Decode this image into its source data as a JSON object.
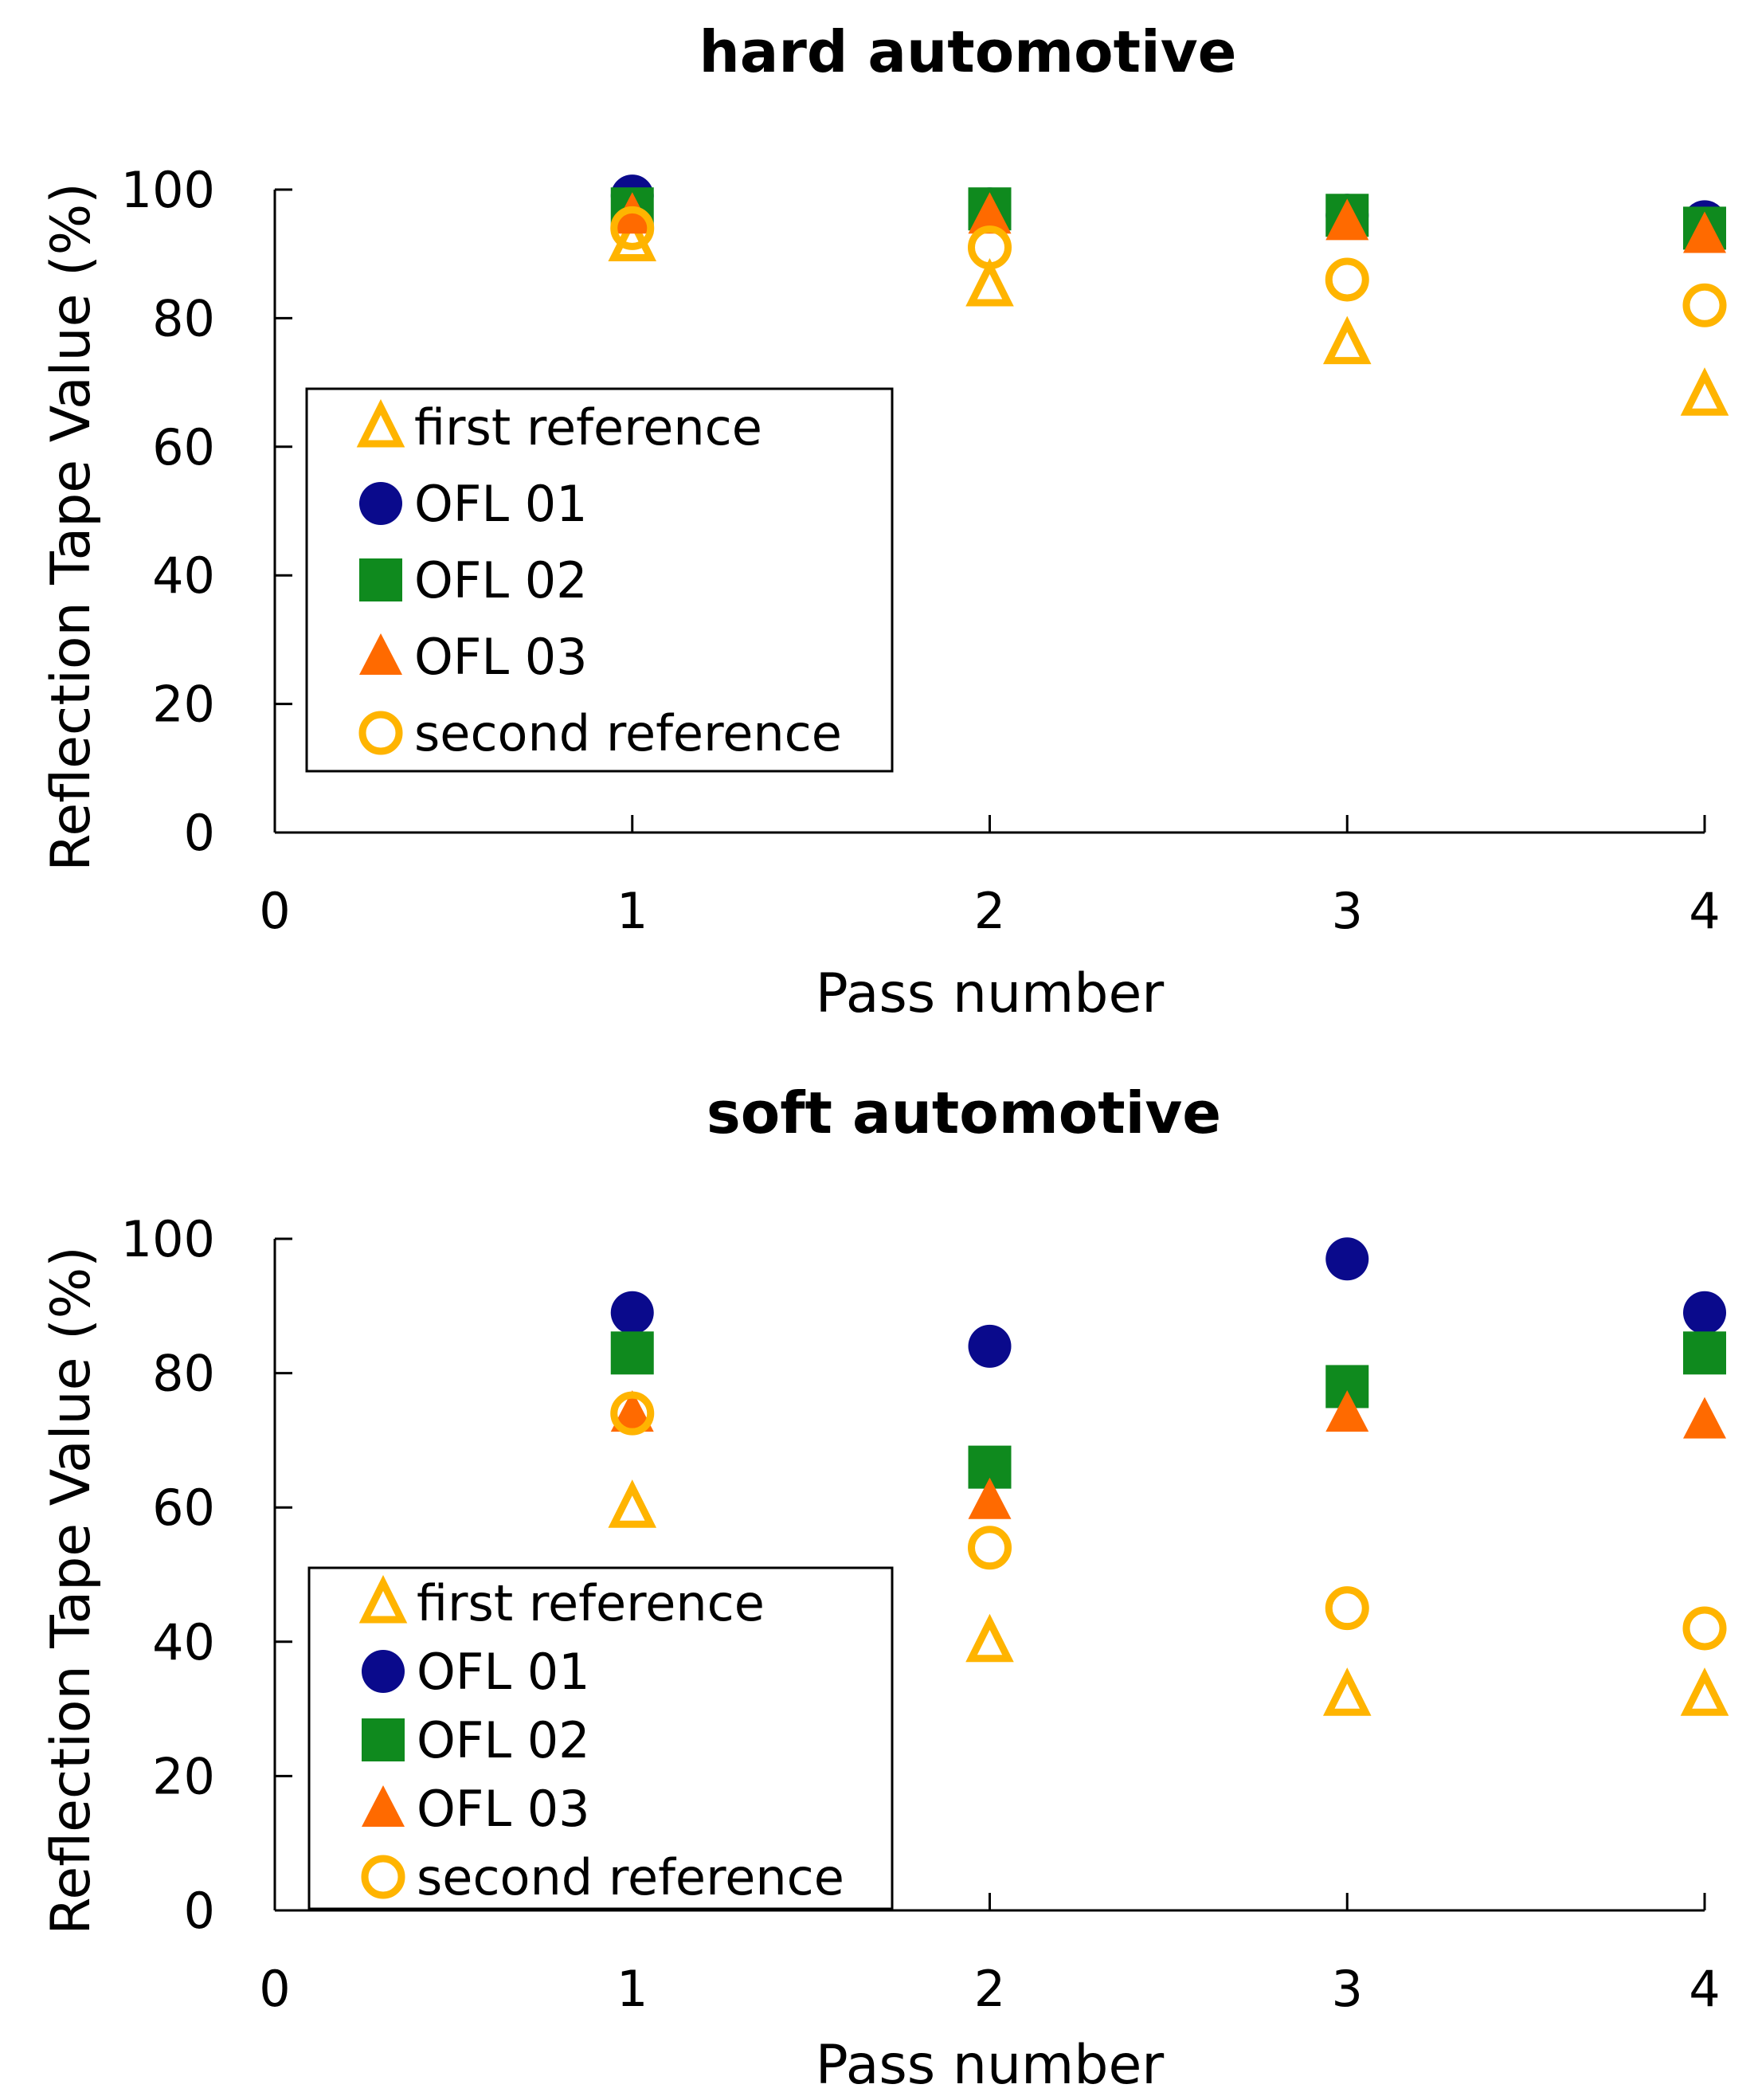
{
  "chart_data": [
    {
      "type": "scatter",
      "title": "hard automotive",
      "xlabel": "Pass number",
      "ylabel": "Reflection Tape Value (%)",
      "xlim": [
        0,
        4
      ],
      "ylim": [
        0,
        100
      ],
      "xticks": [
        0,
        1,
        2,
        3,
        4
      ],
      "yticks": [
        0,
        20,
        40,
        60,
        80,
        100
      ],
      "grid": false,
      "legend_position": "left",
      "series": [
        {
          "name": "first reference",
          "marker": "triangle-open",
          "color": "#FFB400",
          "x": [
            1,
            2,
            3,
            4
          ],
          "y": [
            92,
            85,
            76,
            68
          ]
        },
        {
          "name": "OFL 01",
          "marker": "circle-filled",
          "color": "#0A0A8C",
          "x": [
            1,
            2,
            3,
            4
          ],
          "y": [
            99,
            97,
            96,
            95
          ]
        },
        {
          "name": "OFL 02",
          "marker": "square-filled",
          "color": "#0F8A1E",
          "x": [
            1,
            2,
            3,
            4
          ],
          "y": [
            97,
            97,
            96,
            94
          ]
        },
        {
          "name": "OFL 03",
          "marker": "triangle-filled",
          "color": "#FF6A00",
          "x": [
            1,
            2,
            3,
            4
          ],
          "y": [
            96,
            96,
            95,
            93
          ]
        },
        {
          "name": "second reference",
          "marker": "circle-open",
          "color": "#FFB400",
          "x": [
            1,
            2,
            3,
            4
          ],
          "y": [
            94,
            91,
            86,
            82
          ]
        }
      ]
    },
    {
      "type": "scatter",
      "title": "soft automotive",
      "xlabel": "Pass number",
      "ylabel": "Reflection Tape Value (%)",
      "xlim": [
        0,
        4
      ],
      "ylim": [
        0,
        100
      ],
      "xticks": [
        0,
        1,
        2,
        3,
        4
      ],
      "yticks": [
        0,
        20,
        40,
        60,
        80,
        100
      ],
      "grid": false,
      "legend_position": "bottom-left",
      "series": [
        {
          "name": "first reference",
          "marker": "triangle-open",
          "color": "#FFB400",
          "x": [
            1,
            2,
            3,
            4
          ],
          "y": [
            60,
            40,
            32,
            32
          ]
        },
        {
          "name": "OFL 01",
          "marker": "circle-filled",
          "color": "#0A0A8C",
          "x": [
            1,
            2,
            3,
            4
          ],
          "y": [
            89,
            84,
            97,
            89
          ]
        },
        {
          "name": "OFL 02",
          "marker": "square-filled",
          "color": "#0F8A1E",
          "x": [
            1,
            2,
            3,
            4
          ],
          "y": [
            83,
            66,
            78,
            83
          ]
        },
        {
          "name": "OFL 03",
          "marker": "triangle-filled",
          "color": "#FF6A00",
          "x": [
            1,
            2,
            3,
            4
          ],
          "y": [
            74,
            61,
            74,
            73
          ]
        },
        {
          "name": "second reference",
          "marker": "circle-open",
          "color": "#FFB400",
          "x": [
            1,
            2,
            3,
            4
          ],
          "y": [
            74,
            54,
            45,
            42
          ]
        }
      ]
    }
  ]
}
